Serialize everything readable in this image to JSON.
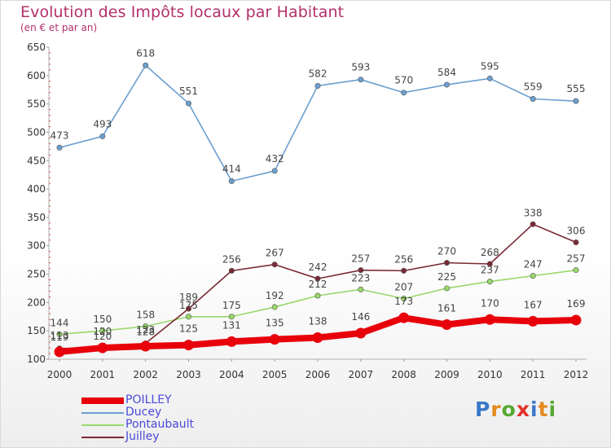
{
  "header": {
    "title": "Evolution des Impôts locaux par Habitant",
    "subtitle": "(en € et par an)"
  },
  "logo": {
    "text": "Proxiti",
    "colors": [
      "#3a78c8",
      "#e48a1c",
      "#57a832",
      "#e4312b",
      "#3a78c8",
      "#e48a1c",
      "#57a832"
    ]
  },
  "chart_data": {
    "type": "line",
    "title": "Evolution des Impôts locaux par Habitant",
    "subtitle": "(en € et par an)",
    "x": [
      "2000",
      "2001",
      "2002",
      "2003",
      "2004",
      "2005",
      "2006",
      "2007",
      "2008",
      "2009",
      "2010",
      "2011",
      "2012"
    ],
    "ylim": [
      100,
      650
    ],
    "yticks": [
      100,
      150,
      200,
      250,
      300,
      350,
      400,
      450,
      500,
      550,
      600,
      650
    ],
    "grid": false,
    "legend_position": "bottom-left",
    "series": [
      {
        "name": "POILLEY",
        "color": "#e8000b",
        "values": [
          113,
          120,
          123,
          125,
          131,
          135,
          138,
          146,
          173,
          161,
          170,
          167,
          169
        ]
      },
      {
        "name": "Ducey",
        "color": "#6b9fcf",
        "values": [
          473,
          493,
          618,
          551,
          414,
          432,
          582,
          593,
          570,
          584,
          595,
          559,
          555
        ]
      },
      {
        "name": "Pontaubault",
        "color": "#99d86a",
        "values": [
          144,
          150,
          158,
          175,
          175,
          192,
          212,
          223,
          207,
          225,
          237,
          247,
          257
        ]
      },
      {
        "name": "Juilley",
        "color": "#7a2a34",
        "values": [
          119,
          120,
          128,
          189,
          256,
          267,
          242,
          257,
          256,
          270,
          268,
          338,
          306
        ]
      }
    ]
  }
}
